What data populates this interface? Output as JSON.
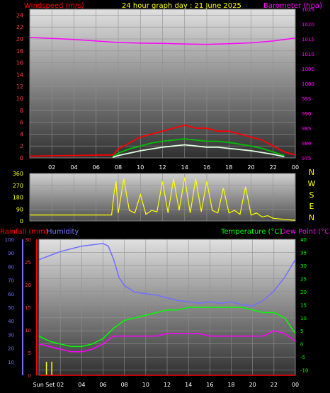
{
  "header": {
    "windspeed_label": "Windspeed (m/s)",
    "title": "24 hour graph day : 21 June 2025",
    "barometer_label": "Barometer (hpa)"
  },
  "lower_header": {
    "rainfall_label": "Rainfall (mm)",
    "humidity_label": "Humidity",
    "temperature_label": "Temperature (°C)",
    "dewpoint_label": "Dew Point (°C)"
  },
  "compass": [
    "N",
    "W",
    "S",
    "E",
    "N"
  ],
  "colors": {
    "wind": "#ff0000",
    "gust_mid": "#00c000",
    "gust_low": "#e0ffe0",
    "barometer": "#ff00ff",
    "direction": "#ffff00",
    "humidity": "#7070ff",
    "temperature": "#00ff00",
    "dewpoint": "#ff00ff",
    "rain": "#ffff00"
  },
  "chart_data": [
    {
      "type": "line",
      "id": "wind-barometer",
      "title": "24 hour graph day : 21 June 2025",
      "ylabel": "Windspeed (m/s)",
      "y2label": "Barometer (hpa)",
      "x_ticks": [
        "02",
        "04",
        "06",
        "08",
        "10",
        "12",
        "14",
        "16",
        "18",
        "20",
        "22",
        "00"
      ],
      "ylim": [
        0,
        25
      ],
      "y_ticks": [
        "0",
        "2",
        "4",
        "6",
        "8",
        "10",
        "12",
        "14",
        "16",
        "18",
        "20",
        "22",
        "24"
      ],
      "y2lim": [
        975,
        1025
      ],
      "y2_ticks": [
        "975",
        "980",
        "985",
        "990",
        "995",
        "1000",
        "1005",
        "1010",
        "1015",
        "1020",
        "1025"
      ],
      "series": [
        {
          "color": "#ff00ff",
          "axis": "y2",
          "x": [
            0,
            2,
            4,
            6,
            8,
            10,
            12,
            14,
            16,
            18,
            20,
            22,
            24
          ],
          "y": [
            1015.5,
            1015.2,
            1014.8,
            1014.3,
            1013.8,
            1013.6,
            1013.5,
            1013.3,
            1013.2,
            1013.4,
            1013.7,
            1014.3,
            1015.3
          ]
        },
        {
          "color": "#ff0000",
          "axis": "y",
          "x": [
            0,
            7.5,
            8,
            9,
            10,
            11,
            12,
            13,
            14,
            15,
            16,
            17,
            18,
            19,
            20,
            21,
            22,
            23,
            24
          ],
          "y": [
            0.3,
            0.5,
            1.5,
            2.5,
            3.5,
            4.0,
            4.5,
            5.0,
            5.5,
            5.0,
            5.0,
            4.5,
            4.5,
            4.0,
            3.5,
            3.0,
            2.0,
            1.0,
            0.5
          ]
        },
        {
          "color": "#00c000",
          "axis": "y",
          "x": [
            7.5,
            8,
            9,
            10,
            11,
            12,
            13,
            14,
            15,
            16,
            17,
            18,
            19,
            20,
            21,
            22,
            23
          ],
          "y": [
            0.2,
            0.8,
            1.5,
            2.0,
            2.5,
            2.8,
            3.0,
            3.2,
            3.0,
            2.8,
            2.8,
            2.6,
            2.3,
            2.0,
            1.6,
            1.0,
            0.4
          ]
        },
        {
          "color": "#e0ffe0",
          "axis": "y",
          "x": [
            7.5,
            8,
            9,
            10,
            11,
            12,
            13,
            14,
            15,
            16,
            17,
            18,
            19,
            20,
            21,
            22,
            23
          ],
          "y": [
            0.1,
            0.4,
            0.8,
            1.2,
            1.5,
            1.8,
            2.0,
            2.2,
            2.0,
            1.8,
            1.8,
            1.6,
            1.4,
            1.2,
            0.9,
            0.6,
            0.2
          ]
        }
      ]
    },
    {
      "type": "line",
      "id": "wind-direction",
      "ylim": [
        0,
        360
      ],
      "y_ticks": [
        "0",
        "90",
        "180",
        "270",
        "360"
      ],
      "series": [
        {
          "color": "#ffff00",
          "x": [
            0,
            7.4,
            7.6,
            7.8,
            8.0,
            8.5,
            9.0,
            9.5,
            10.0,
            10.5,
            11.0,
            11.5,
            12.0,
            12.5,
            13.0,
            13.5,
            14.0,
            14.5,
            15.0,
            15.5,
            16.0,
            16.5,
            17.0,
            17.5,
            18.0,
            18.5,
            19.0,
            19.5,
            20.0,
            20.5,
            21.0,
            21.5,
            22.0,
            24
          ],
          "y": [
            45,
            45,
            200,
            300,
            60,
            320,
            80,
            60,
            200,
            50,
            80,
            70,
            300,
            60,
            320,
            80,
            330,
            60,
            320,
            70,
            300,
            80,
            60,
            250,
            60,
            80,
            50,
            260,
            45,
            60,
            30,
            40,
            20,
            5
          ]
        }
      ]
    },
    {
      "type": "line",
      "id": "temperature-humidity",
      "ylabel": "Rainfall (mm)",
      "x_ticks": [
        "Sun Set",
        "02",
        "04",
        "06",
        "08",
        "10",
        "12",
        "14",
        "16",
        "18",
        "20",
        "22",
        "00"
      ],
      "humidity_ticks": [
        "10",
        "20",
        "30",
        "40",
        "50",
        "60",
        "70",
        "80",
        "90",
        "100"
      ],
      "humidity_lim": [
        0,
        100
      ],
      "rain_ticks": [
        "0",
        "5",
        "10",
        "15",
        "20",
        "25",
        "30"
      ],
      "rain_lim": [
        0,
        30
      ],
      "temp_ticks": [
        "-10",
        "-5",
        "0",
        "5",
        "10",
        "15",
        "20",
        "25",
        "30",
        "35",
        "40"
      ],
      "temp_lim": [
        -12,
        40
      ],
      "series": [
        {
          "name": "Humidity",
          "color": "#7070ff",
          "axis": "humidity",
          "x": [
            0,
            1,
            2,
            3,
            4,
            5,
            6,
            6.5,
            7,
            7.5,
            8,
            9,
            10,
            11,
            12,
            13,
            14,
            15,
            16,
            17,
            18,
            19,
            20,
            21,
            22,
            23,
            24
          ],
          "y": [
            85,
            88,
            91,
            93,
            95,
            96,
            97,
            95,
            85,
            72,
            66,
            61,
            60,
            59,
            57,
            55,
            54,
            53,
            54,
            53,
            54,
            52,
            51,
            55,
            62,
            72,
            85
          ]
        },
        {
          "name": "Temperature",
          "color": "#00ff00",
          "axis": "temp",
          "x": [
            0,
            1,
            2,
            3,
            4,
            5,
            6,
            6.5,
            7,
            8,
            9,
            10,
            11,
            12,
            13,
            14,
            15,
            16,
            17,
            18,
            19,
            20,
            21,
            22,
            23,
            24
          ],
          "y": [
            3,
            1,
            0,
            -1,
            -1,
            0,
            2,
            4,
            6,
            9,
            10,
            11,
            12,
            13,
            13,
            14,
            14,
            14,
            14,
            14,
            14,
            13,
            12,
            12,
            10,
            4
          ]
        },
        {
          "name": "Dew Point",
          "color": "#ff00ff",
          "axis": "temp",
          "x": [
            0,
            1,
            2,
            3,
            4,
            5,
            6,
            7,
            8,
            9,
            10,
            11,
            12,
            13,
            14,
            15,
            16,
            17,
            18,
            19,
            20,
            21,
            22,
            23,
            24
          ],
          "y": [
            0,
            -1,
            -2,
            -3,
            -3,
            -2,
            0,
            3,
            3,
            3,
            3,
            3,
            4,
            4,
            4,
            4,
            3,
            3,
            3,
            3,
            3,
            3,
            5,
            4,
            1
          ]
        },
        {
          "name": "Rainfall",
          "color": "#ff0000",
          "axis": "rain",
          "x": [
            0,
            24
          ],
          "y": [
            0,
            0
          ]
        }
      ],
      "rain_bars": {
        "color": "#ffff00",
        "x": [
          0.7,
          1.2
        ],
        "y": [
          3,
          3
        ]
      }
    }
  ]
}
